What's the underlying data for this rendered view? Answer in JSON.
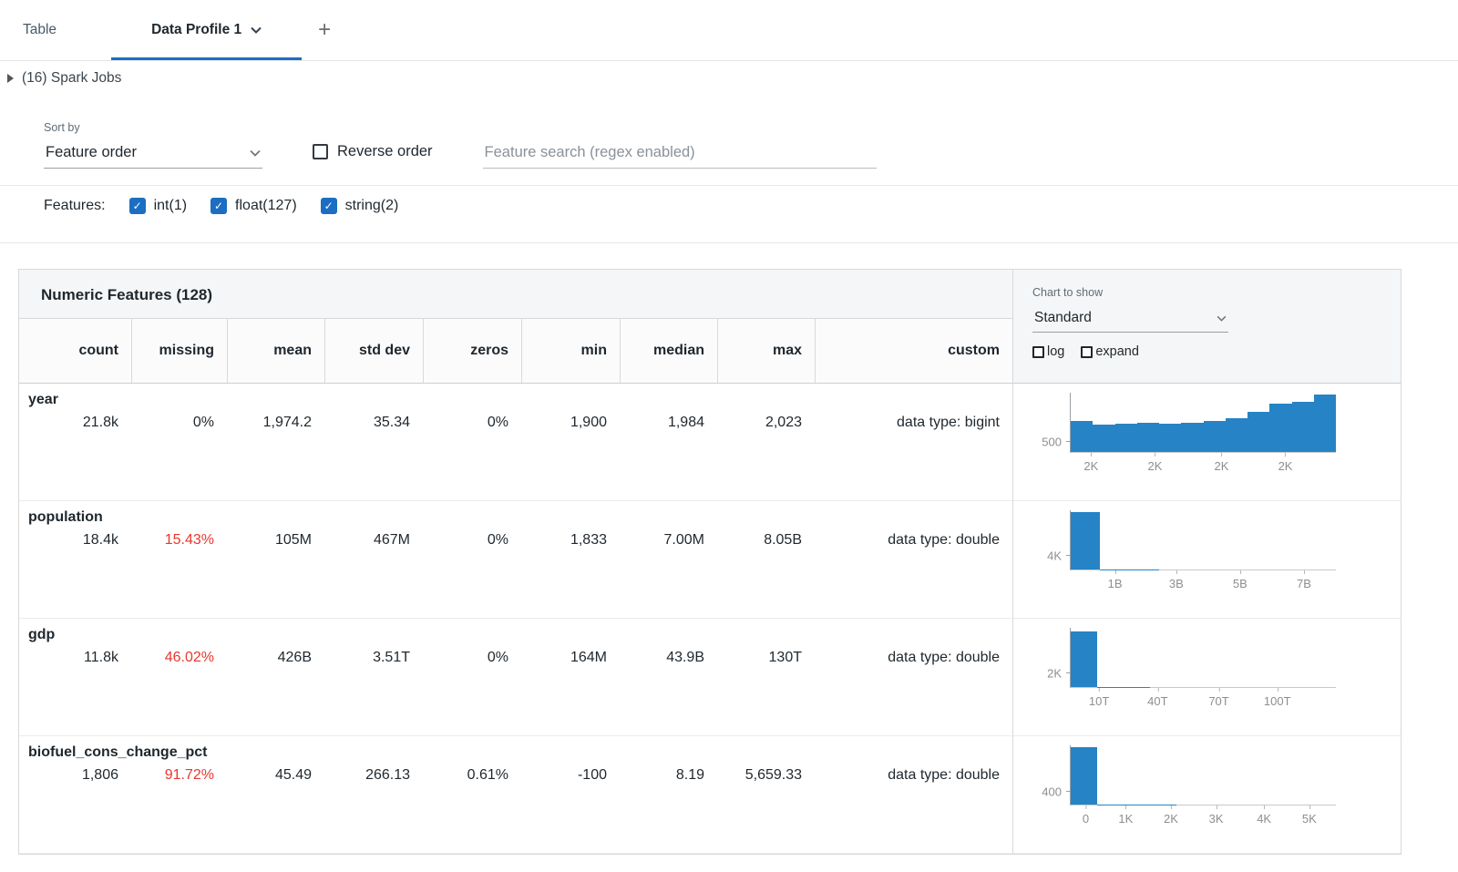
{
  "colors": {
    "accent": "#1b6ec2",
    "bar": "#2683c6",
    "missing_alert": "#e8362d"
  },
  "tabs": {
    "table_label": "Table",
    "profile_label": "Data Profile 1",
    "add_label": "+"
  },
  "spark_jobs": {
    "label": "(16) Spark Jobs"
  },
  "controls": {
    "sort_by_label": "Sort by",
    "sort_value": "Feature order",
    "reverse_label": "Reverse order",
    "search_placeholder": "Feature search (regex enabled)",
    "features_label": "Features:",
    "feature_filters": [
      {
        "label": "int(1)",
        "checked": true
      },
      {
        "label": "float(127)",
        "checked": true
      },
      {
        "label": "string(2)",
        "checked": true
      }
    ]
  },
  "table": {
    "title": "Numeric Features (128)",
    "columns": [
      "count",
      "missing",
      "mean",
      "std dev",
      "zeros",
      "min",
      "median",
      "max",
      "custom"
    ],
    "chart_controls": {
      "label": "Chart to show",
      "value": "Standard",
      "log_label": "log",
      "expand_label": "expand"
    },
    "rows": [
      {
        "name": "year",
        "count": "21.8k",
        "missing": "0%",
        "mean": "1,974.2",
        "std_dev": "35.34",
        "zeros": "0%",
        "min": "1,900",
        "median": "1,984",
        "max": "2,023",
        "custom": "data type: bigint"
      },
      {
        "name": "population",
        "count": "18.4k",
        "missing": "15.43%",
        "mean": "105M",
        "std_dev": "467M",
        "zeros": "0%",
        "min": "1,833",
        "median": "7.00M",
        "max": "8.05B",
        "custom": "data type: double"
      },
      {
        "name": "gdp",
        "count": "11.8k",
        "missing": "46.02%",
        "mean": "426B",
        "std_dev": "3.51T",
        "zeros": "0%",
        "min": "164M",
        "median": "43.9B",
        "max": "130T",
        "custom": "data type: double"
      },
      {
        "name": "biofuel_cons_change_pct",
        "count": "1,806",
        "missing": "91.72%",
        "mean": "45.49",
        "std_dev": "266.13",
        "zeros": "0.61%",
        "min": "-100",
        "median": "8.19",
        "max": "5,659.33",
        "custom": "data type: double"
      }
    ]
  },
  "chart_data": [
    {
      "type": "bar",
      "feature": "year",
      "ymax": 2800,
      "ytick": {
        "label": "500",
        "value": 500
      },
      "values": [
        1450,
        1300,
        1340,
        1370,
        1350,
        1380,
        1450,
        1600,
        1900,
        2300,
        2380,
        2700
      ],
      "xticks": [
        {
          "label": "2K",
          "pos": 8
        },
        {
          "label": "2K",
          "pos": 32
        },
        {
          "label": "2K",
          "pos": 57
        },
        {
          "label": "2K",
          "pos": 81
        }
      ]
    },
    {
      "type": "bar",
      "feature": "population",
      "ymax": 16000,
      "ytick": {
        "label": "4K",
        "value": 4000
      },
      "values": [
        15500,
        60,
        25,
        12,
        8,
        5,
        3,
        2,
        1
      ],
      "xticks": [
        {
          "label": "1B",
          "pos": 17
        },
        {
          "label": "3B",
          "pos": 40
        },
        {
          "label": "5B",
          "pos": 64
        },
        {
          "label": "7B",
          "pos": 88
        }
      ]
    },
    {
      "type": "bar",
      "feature": "gdp",
      "ymax": 8000,
      "ytick": {
        "label": "2K",
        "value": 2000
      },
      "values": [
        7500,
        40,
        15,
        8,
        5,
        3,
        2,
        1,
        1,
        1
      ],
      "xticks": [
        {
          "label": "10T",
          "pos": 11
        },
        {
          "label": "40T",
          "pos": 33
        },
        {
          "label": "70T",
          "pos": 56
        },
        {
          "label": "100T",
          "pos": 78
        }
      ]
    },
    {
      "type": "bar",
      "feature": "biofuel_cons_change_pct",
      "ymax": 1800,
      "ytick": {
        "label": "400",
        "value": 400
      },
      "values": [
        1750,
        12,
        6,
        3,
        2,
        1,
        1,
        0,
        0,
        0
      ],
      "xticks": [
        {
          "label": "0",
          "pos": 6
        },
        {
          "label": "1K",
          "pos": 21
        },
        {
          "label": "2K",
          "pos": 38
        },
        {
          "label": "3K",
          "pos": 55
        },
        {
          "label": "4K",
          "pos": 73
        },
        {
          "label": "5K",
          "pos": 90
        }
      ]
    }
  ]
}
